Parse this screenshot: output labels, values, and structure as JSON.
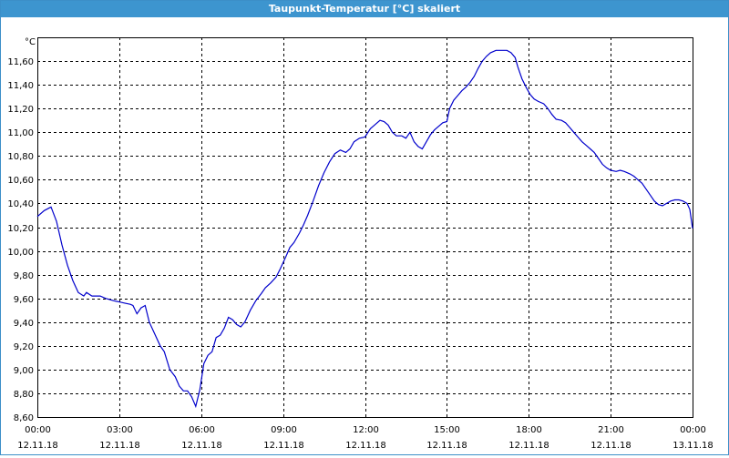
{
  "window": {
    "title": "Taupunkt-Temperatur [°C] skaliert"
  },
  "chart_data": {
    "type": "line",
    "title": "Taupunkt-Temperatur [°C] skaliert",
    "ylabel": "°C",
    "xlabel": "",
    "ylim": [
      8.6,
      11.8
    ],
    "xlim": [
      0,
      24
    ],
    "grid": true,
    "y_ticks": [
      {
        "value": 8.6,
        "label": "8,60"
      },
      {
        "value": 8.8,
        "label": "8,80"
      },
      {
        "value": 9.0,
        "label": "9,00"
      },
      {
        "value": 9.2,
        "label": "9,20"
      },
      {
        "value": 9.4,
        "label": "9,40"
      },
      {
        "value": 9.6,
        "label": "9,60"
      },
      {
        "value": 9.8,
        "label": "9,80"
      },
      {
        "value": 10.0,
        "label": "10,00"
      },
      {
        "value": 10.2,
        "label": "10,20"
      },
      {
        "value": 10.4,
        "label": "10,40"
      },
      {
        "value": 10.6,
        "label": "10,60"
      },
      {
        "value": 10.8,
        "label": "10,80"
      },
      {
        "value": 11.0,
        "label": "11,00"
      },
      {
        "value": 11.2,
        "label": "11,20"
      },
      {
        "value": 11.4,
        "label": "11,40"
      },
      {
        "value": 11.6,
        "label": "11,60"
      }
    ],
    "x_ticks": [
      {
        "value": 0,
        "time": "00:00",
        "date": "12.11.18"
      },
      {
        "value": 3,
        "time": "03:00",
        "date": "12.11.18"
      },
      {
        "value": 6,
        "time": "06:00",
        "date": "12.11.18"
      },
      {
        "value": 9,
        "time": "09:00",
        "date": "12.11.18"
      },
      {
        "value": 12,
        "time": "12:00",
        "date": "12.11.18"
      },
      {
        "value": 15,
        "time": "15:00",
        "date": "12.11.18"
      },
      {
        "value": 18,
        "time": "18:00",
        "date": "12.11.18"
      },
      {
        "value": 21,
        "time": "21:00",
        "date": "12.11.18"
      },
      {
        "value": 24,
        "time": "00:00",
        "date": "13.11.18"
      }
    ],
    "series": [
      {
        "color": "#0000cc",
        "points": [
          [
            0.0,
            10.29
          ],
          [
            0.25,
            10.34
          ],
          [
            0.5,
            10.37
          ],
          [
            0.7,
            10.25
          ],
          [
            0.9,
            10.05
          ],
          [
            1.1,
            9.88
          ],
          [
            1.3,
            9.75
          ],
          [
            1.5,
            9.65
          ],
          [
            1.7,
            9.62
          ],
          [
            1.8,
            9.65
          ],
          [
            2.0,
            9.62
          ],
          [
            2.3,
            9.62
          ],
          [
            2.5,
            9.6
          ],
          [
            2.8,
            9.58
          ],
          [
            3.0,
            9.57
          ],
          [
            3.2,
            9.56
          ],
          [
            3.4,
            9.55
          ],
          [
            3.5,
            9.54
          ],
          [
            3.65,
            9.47
          ],
          [
            3.8,
            9.52
          ],
          [
            3.95,
            9.54
          ],
          [
            4.1,
            9.4
          ],
          [
            4.3,
            9.3
          ],
          [
            4.5,
            9.2
          ],
          [
            4.65,
            9.15
          ],
          [
            4.85,
            9.0
          ],
          [
            5.05,
            8.94
          ],
          [
            5.2,
            8.86
          ],
          [
            5.35,
            8.82
          ],
          [
            5.5,
            8.82
          ],
          [
            5.65,
            8.77
          ],
          [
            5.8,
            8.69
          ],
          [
            5.95,
            8.83
          ],
          [
            6.1,
            9.05
          ],
          [
            6.25,
            9.12
          ],
          [
            6.4,
            9.15
          ],
          [
            6.55,
            9.27
          ],
          [
            6.7,
            9.29
          ],
          [
            6.85,
            9.35
          ],
          [
            7.0,
            9.44
          ],
          [
            7.15,
            9.42
          ],
          [
            7.3,
            9.38
          ],
          [
            7.45,
            9.36
          ],
          [
            7.6,
            9.4
          ],
          [
            7.8,
            9.5
          ],
          [
            8.0,
            9.58
          ],
          [
            8.2,
            9.64
          ],
          [
            8.35,
            9.69
          ],
          [
            8.55,
            9.73
          ],
          [
            8.75,
            9.78
          ],
          [
            8.9,
            9.85
          ],
          [
            9.1,
            9.95
          ],
          [
            9.25,
            10.03
          ],
          [
            9.4,
            10.07
          ],
          [
            9.6,
            10.15
          ],
          [
            9.75,
            10.22
          ],
          [
            9.9,
            10.3
          ],
          [
            10.1,
            10.42
          ],
          [
            10.3,
            10.55
          ],
          [
            10.5,
            10.66
          ],
          [
            10.7,
            10.75
          ],
          [
            10.9,
            10.82
          ],
          [
            11.1,
            10.85
          ],
          [
            11.3,
            10.83
          ],
          [
            11.45,
            10.86
          ],
          [
            11.6,
            10.92
          ],
          [
            11.8,
            10.95
          ],
          [
            12.0,
            10.96
          ],
          [
            12.2,
            11.03
          ],
          [
            12.4,
            11.07
          ],
          [
            12.55,
            11.1
          ],
          [
            12.7,
            11.09
          ],
          [
            12.85,
            11.06
          ],
          [
            13.0,
            11.0
          ],
          [
            13.15,
            10.97
          ],
          [
            13.35,
            10.97
          ],
          [
            13.5,
            10.95
          ],
          [
            13.65,
            11.0
          ],
          [
            13.8,
            10.92
          ],
          [
            13.95,
            10.88
          ],
          [
            14.1,
            10.86
          ],
          [
            14.25,
            10.92
          ],
          [
            14.4,
            10.98
          ],
          [
            14.55,
            11.02
          ],
          [
            14.7,
            11.05
          ],
          [
            14.85,
            11.08
          ],
          [
            15.0,
            11.09
          ],
          [
            15.1,
            11.2
          ],
          [
            15.25,
            11.27
          ],
          [
            15.4,
            11.31
          ],
          [
            15.55,
            11.35
          ],
          [
            15.7,
            11.38
          ],
          [
            15.85,
            11.42
          ],
          [
            16.0,
            11.47
          ],
          [
            16.15,
            11.54
          ],
          [
            16.3,
            11.6
          ],
          [
            16.45,
            11.64
          ],
          [
            16.6,
            11.67
          ],
          [
            16.8,
            11.69
          ],
          [
            17.0,
            11.69
          ],
          [
            17.2,
            11.69
          ],
          [
            17.35,
            11.67
          ],
          [
            17.5,
            11.63
          ],
          [
            17.6,
            11.55
          ],
          [
            17.75,
            11.45
          ],
          [
            17.9,
            11.38
          ],
          [
            18.05,
            11.32
          ],
          [
            18.2,
            11.28
          ],
          [
            18.35,
            11.26
          ],
          [
            18.55,
            11.24
          ],
          [
            18.7,
            11.2
          ],
          [
            18.85,
            11.15
          ],
          [
            19.0,
            11.11
          ],
          [
            19.2,
            11.1
          ],
          [
            19.35,
            11.08
          ],
          [
            19.5,
            11.04
          ],
          [
            19.65,
            11.0
          ],
          [
            19.8,
            10.96
          ],
          [
            19.95,
            10.92
          ],
          [
            20.1,
            10.89
          ],
          [
            20.25,
            10.86
          ],
          [
            20.4,
            10.83
          ],
          [
            20.55,
            10.78
          ],
          [
            20.7,
            10.73
          ],
          [
            20.85,
            10.7
          ],
          [
            21.0,
            10.68
          ],
          [
            21.2,
            10.67
          ],
          [
            21.35,
            10.68
          ],
          [
            21.5,
            10.67
          ],
          [
            21.7,
            10.65
          ],
          [
            21.85,
            10.63
          ],
          [
            22.0,
            10.6
          ],
          [
            22.15,
            10.57
          ],
          [
            22.3,
            10.52
          ],
          [
            22.45,
            10.47
          ],
          [
            22.6,
            10.42
          ],
          [
            22.75,
            10.39
          ],
          [
            22.9,
            10.38
          ],
          [
            23.05,
            10.4
          ],
          [
            23.2,
            10.42
          ],
          [
            23.35,
            10.43
          ],
          [
            23.5,
            10.43
          ],
          [
            23.65,
            10.42
          ],
          [
            23.8,
            10.4
          ],
          [
            23.9,
            10.35
          ],
          [
            24.0,
            10.19
          ]
        ]
      }
    ]
  }
}
